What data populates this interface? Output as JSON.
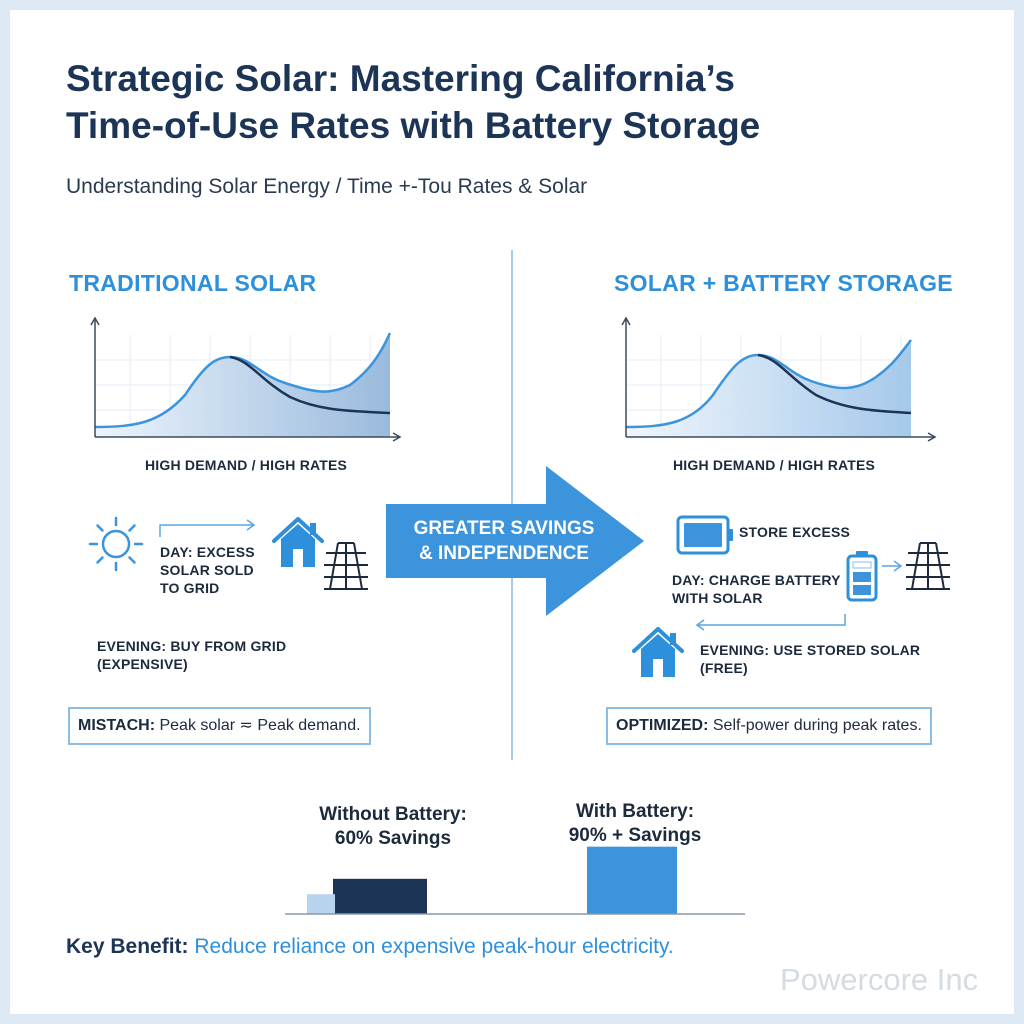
{
  "header": {
    "title_line1": "Strategic Solar: Mastering California’s",
    "title_line2": "Time-of-Use Rates with Battery Storage",
    "subtitle": "Understanding Solar Energy / Time +-Tou Rates & Solar"
  },
  "left": {
    "heading": "TRADITIONAL SOLAR",
    "chart_caption": "HIGH DEMAND / HIGH RATES",
    "day_lines": [
      "DAY: EXCESS",
      "SOLAR SOLD",
      "TO GRID"
    ],
    "evening_lines": [
      "EVENING: BUY FROM GRID",
      "(EXPENSIVE)"
    ],
    "box_bold": "MISTACH:",
    "box_text": " Peak solar ≂ Peak demand."
  },
  "center": {
    "arrow_line1": "GREATER SAVINGS",
    "arrow_line2": "& INDEPENDENCE"
  },
  "right": {
    "heading": "SOLAR + BATTERY STORAGE",
    "chart_caption": "HIGH DEMAND / HIGH RATES",
    "store_label": "STORE EXCESS",
    "day_lines": [
      "DAY: CHARGE BATTERY",
      "WITH SOLAR"
    ],
    "evening_lines": [
      "EVENING: USE STORED SOLAR",
      "(FREE)"
    ],
    "box_bold": "OPTIMIZED:",
    "box_text": " Self-power during peak rates."
  },
  "comparison": {
    "without_line1": "Without Battery:",
    "without_line2": "60% Savings",
    "with_line1": "With Battery:",
    "with_line2": "90% + Savings",
    "without_value": 60,
    "with_value": 90,
    "colors": {
      "without": "#1c3557",
      "with": "#3b94dc",
      "ghost": "#b8d3ee"
    }
  },
  "footer": {
    "bold": "Key Benefit:",
    "text": " Reduce reliance on expensive peak-hour electricity."
  },
  "watermark": "Powercore Inc",
  "icons": [
    "sun-icon",
    "house-icon",
    "power-tower-icon",
    "battery-tablet-icon",
    "battery-icon",
    "arrow-right-icon"
  ]
}
